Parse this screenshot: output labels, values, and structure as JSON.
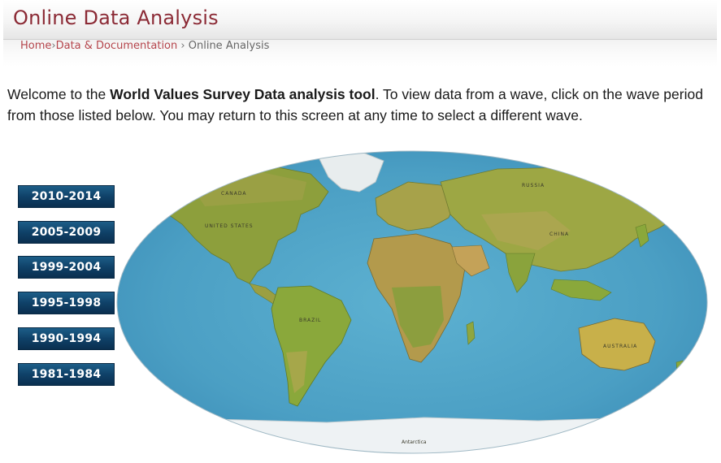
{
  "header": {
    "title": "Online Data Analysis"
  },
  "breadcrumb": {
    "home": "Home",
    "sep1": "›",
    "data_docs": "Data & Documentation",
    "sep2": "›",
    "current": "Online Analysis"
  },
  "intro": {
    "lead": "Welcome to the ",
    "tool_name": "World Values Survey Data analysis tool",
    "rest": ". To view data from a wave, click on the wave period from those listed below. You may return to this screen at any time to select a different wave."
  },
  "waves": [
    {
      "label": "2010-2014"
    },
    {
      "label": "2005-2009"
    },
    {
      "label": "1999-2004"
    },
    {
      "label": "1995-1998"
    },
    {
      "label": "1990-1994"
    },
    {
      "label": "1981-1984"
    }
  ],
  "map": {
    "labels": {
      "canada": "CANADA",
      "usa": "UNITED STATES",
      "brazil": "BRAZIL",
      "russia": "RUSSIA",
      "china": "CHINA",
      "australia": "AUSTRALIA",
      "antarctica": "Antarctica"
    },
    "colors": {
      "ocean": "#4fa3c6",
      "ocean_deep": "#3a8bb4",
      "land_green": "#7f9a3a",
      "land_olive": "#9aa43e",
      "land_tan": "#c8a85a",
      "ice": "#eef2f4"
    }
  }
}
